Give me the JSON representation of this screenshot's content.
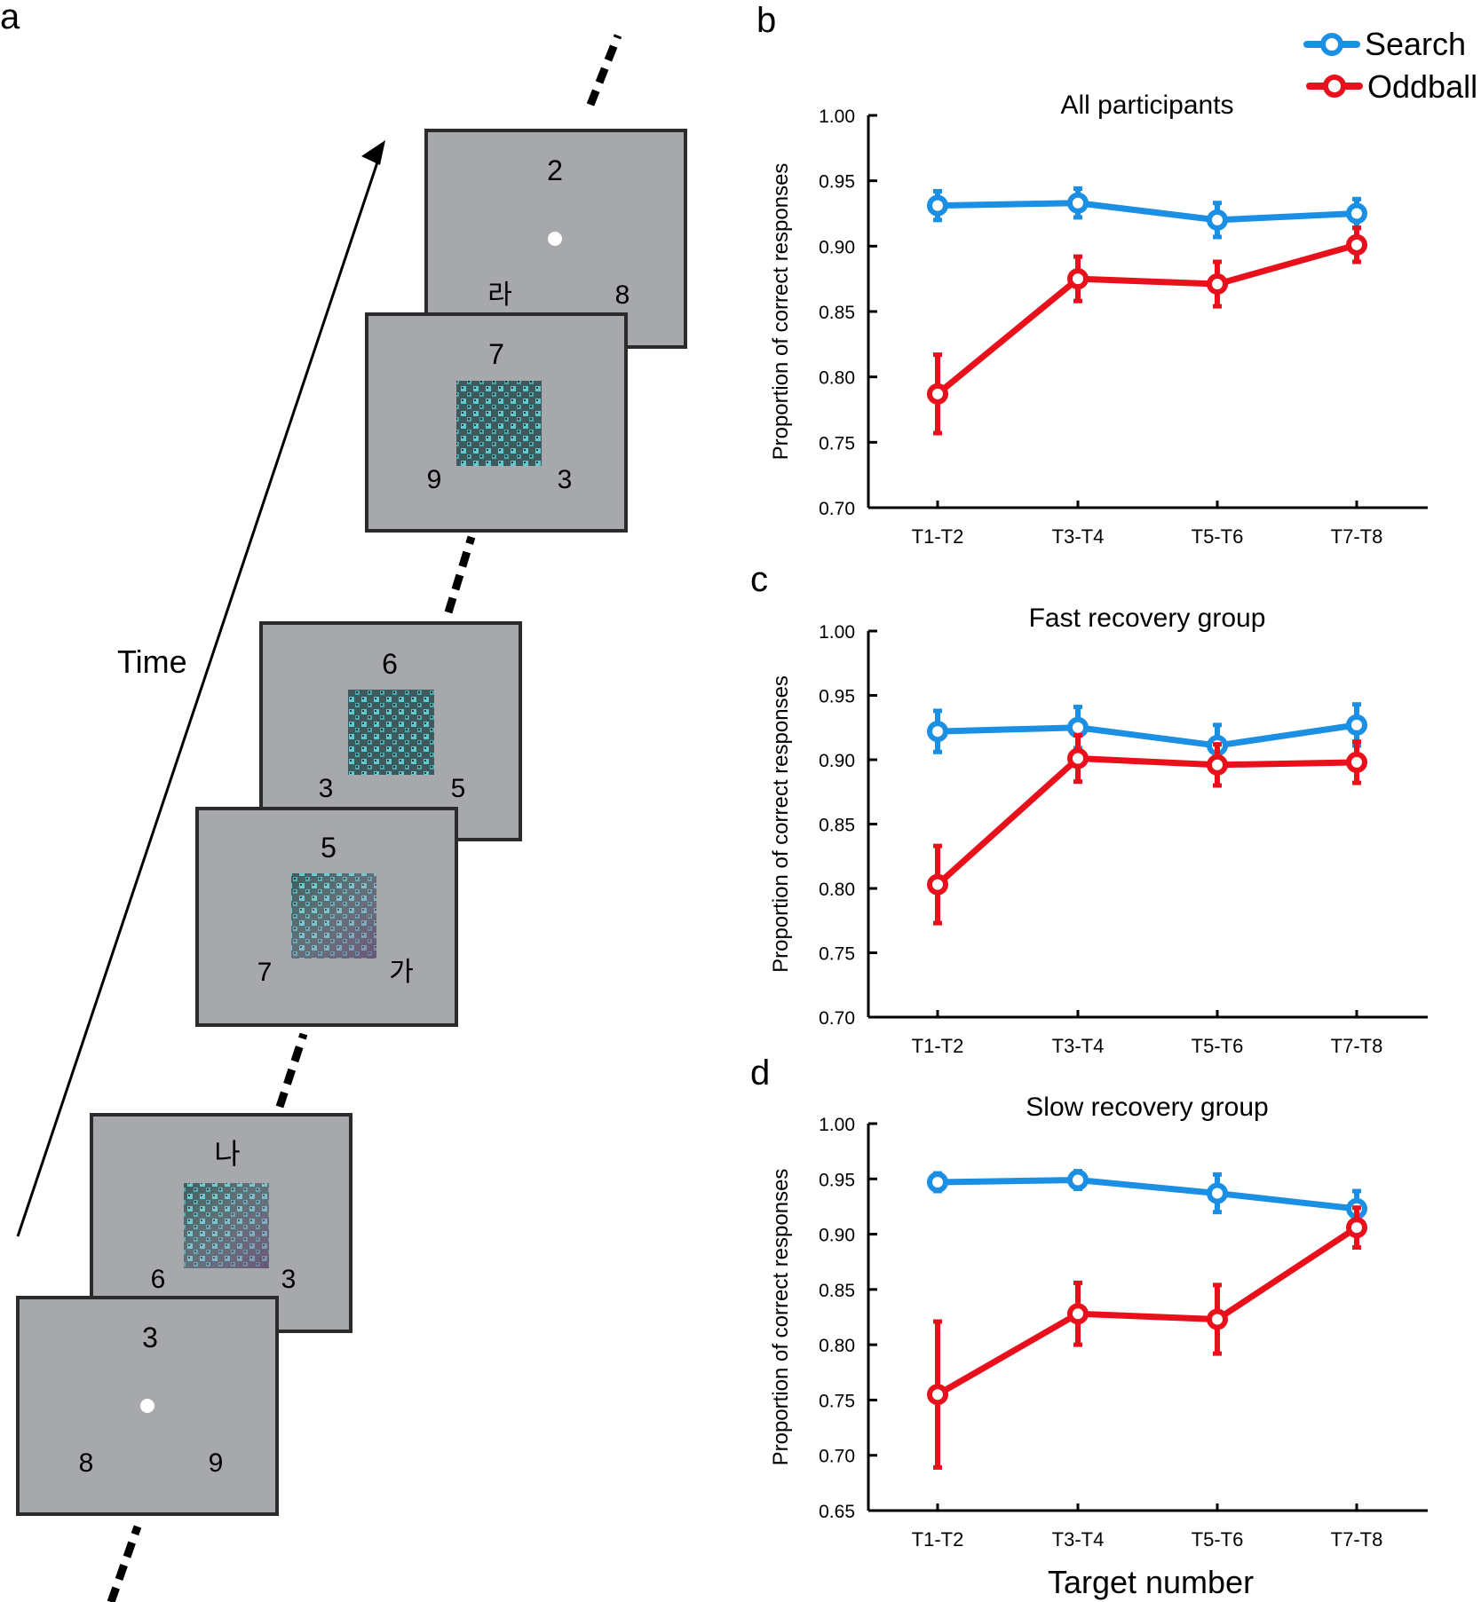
{
  "panel_a": {
    "label": "a",
    "time_label": "Time",
    "screens": [
      {
        "top": "3",
        "left": "8",
        "right": "9",
        "center": "dot"
      },
      {
        "top": "나",
        "left": "6",
        "right": "3",
        "center": "image"
      },
      {
        "top": "5",
        "left": "7",
        "right": "가",
        "center": "image"
      },
      {
        "top": "6",
        "left": "3",
        "right": "5",
        "center": "image"
      },
      {
        "top": "7",
        "left": "9",
        "right": "3",
        "center": "image"
      },
      {
        "top": "2",
        "left": "라",
        "right": "8",
        "center": "dot"
      }
    ]
  },
  "legend": {
    "items": [
      {
        "name": "Search",
        "color": "#1a8fe3"
      },
      {
        "name": "Oddball",
        "color": "#e8101b"
      }
    ]
  },
  "colors": {
    "search": "#1a8fe3",
    "oddball": "#e8101b",
    "screen_fill": "#a7a8ab"
  },
  "chart_data": [
    {
      "panel": "b",
      "type": "line",
      "title": "All participants",
      "xlabel": "",
      "ylabel": "Proportion of correct responses",
      "categories": [
        "T1-T2",
        "T3-T4",
        "T5-T6",
        "T7-T8"
      ],
      "ylim": [
        0.7,
        1.0
      ],
      "yticks": [
        "0.70",
        "0.75",
        "0.80",
        "0.85",
        "0.90",
        "0.95",
        "1.00"
      ],
      "series": [
        {
          "name": "Search",
          "values": [
            0.931,
            0.933,
            0.92,
            0.925
          ],
          "errors": [
            0.011,
            0.011,
            0.013,
            0.011
          ]
        },
        {
          "name": "Oddball",
          "values": [
            0.787,
            0.875,
            0.871,
            0.901
          ],
          "errors": [
            0.03,
            0.017,
            0.017,
            0.013
          ]
        }
      ]
    },
    {
      "panel": "c",
      "type": "line",
      "title": "Fast recovery group",
      "xlabel": "",
      "ylabel": "Proportion of correct responses",
      "categories": [
        "T1-T2",
        "T3-T4",
        "T5-T6",
        "T7-T8"
      ],
      "ylim": [
        0.7,
        1.0
      ],
      "yticks": [
        "0.70",
        "0.75",
        "0.80",
        "0.85",
        "0.90",
        "0.95",
        "1.00"
      ],
      "series": [
        {
          "name": "Search",
          "values": [
            0.922,
            0.925,
            0.911,
            0.927
          ],
          "errors": [
            0.016,
            0.016,
            0.016,
            0.016
          ]
        },
        {
          "name": "Oddball",
          "values": [
            0.803,
            0.901,
            0.896,
            0.898
          ],
          "errors": [
            0.03,
            0.018,
            0.016,
            0.016
          ]
        }
      ]
    },
    {
      "panel": "d",
      "type": "line",
      "title": "Slow recovery group",
      "xlabel": "Target number",
      "ylabel": "Proportion of correct responses",
      "categories": [
        "T1-T2",
        "T3-T4",
        "T5-T6",
        "T7-T8"
      ],
      "ylim": [
        0.65,
        1.0
      ],
      "yticks": [
        "0.65",
        "0.70",
        "0.75",
        "0.80",
        "0.85",
        "0.90",
        "0.95",
        "1.00"
      ],
      "series": [
        {
          "name": "Search",
          "values": [
            0.947,
            0.949,
            0.937,
            0.923
          ],
          "errors": [
            0.008,
            0.008,
            0.017,
            0.016
          ]
        },
        {
          "name": "Oddball",
          "values": [
            0.755,
            0.828,
            0.823,
            0.906
          ],
          "errors": [
            0.066,
            0.028,
            0.031,
            0.018
          ]
        }
      ]
    }
  ]
}
